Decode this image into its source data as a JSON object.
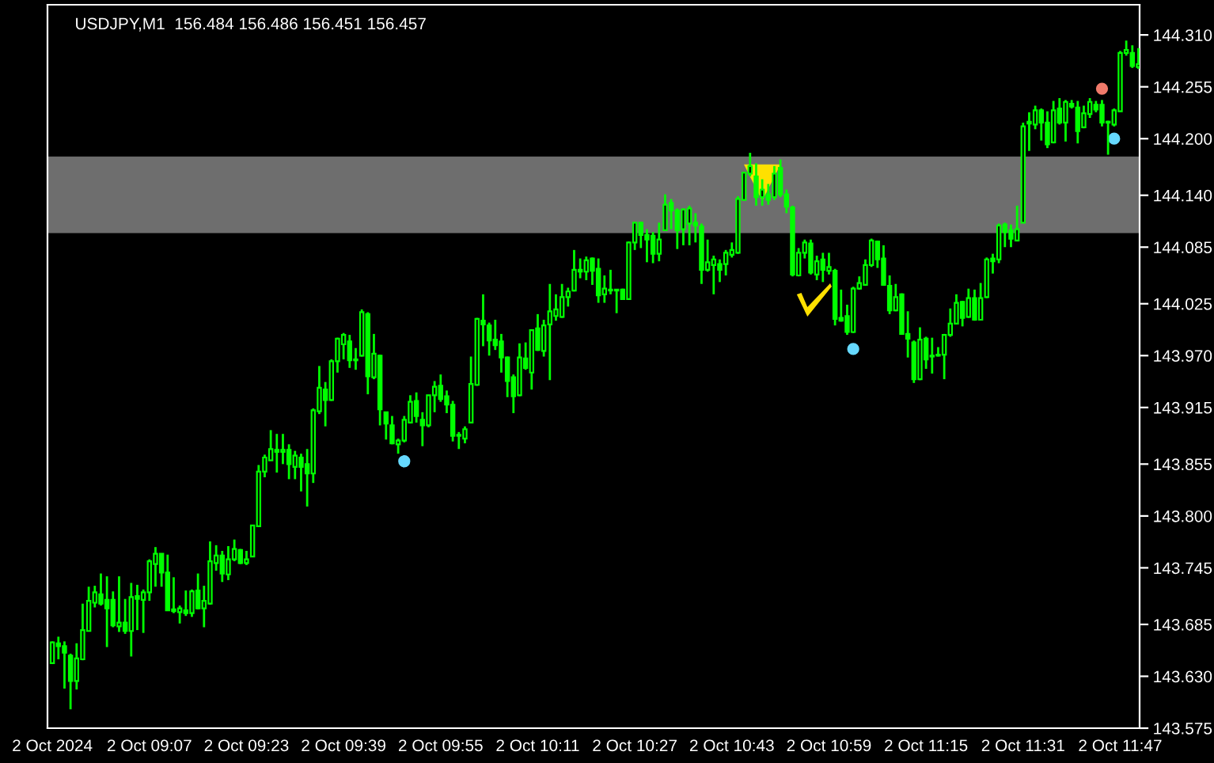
{
  "chart_data": {
    "type": "candlestick",
    "title": "USDJPY,M1  156.484 156.486 156.451 156.457",
    "color": "#00ff00",
    "categories": [
      "2 Oct 2024",
      null,
      null,
      null,
      null,
      null,
      null,
      null,
      null,
      null,
      null,
      null,
      null,
      null,
      null,
      null,
      "2 Oct 09:07",
      null,
      null,
      null,
      null,
      null,
      null,
      null,
      null,
      null,
      null,
      null,
      null,
      null,
      null,
      null,
      "2 Oct 09:23",
      null,
      null,
      null,
      null,
      null,
      null,
      null,
      null,
      null,
      null,
      null,
      null,
      null,
      null,
      null,
      "2 Oct 09:39",
      null,
      null,
      null,
      null,
      null,
      null,
      null,
      null,
      null,
      null,
      null,
      null,
      null,
      null,
      null,
      "2 Oct 09:55",
      null,
      null,
      null,
      null,
      null,
      null,
      null,
      null,
      null,
      null,
      null,
      null,
      null,
      null,
      null,
      "2 Oct 10:11",
      null,
      null,
      null,
      null,
      null,
      null,
      null,
      null,
      null,
      null,
      null,
      null,
      null,
      null,
      null,
      "2 Oct 10:27",
      null,
      null,
      null,
      null,
      null,
      null,
      null,
      null,
      null,
      null,
      null,
      null,
      null,
      null,
      null,
      "2 Oct 10:43",
      null,
      null,
      null,
      null,
      null,
      null,
      null,
      null,
      null,
      null,
      null,
      null,
      null,
      null,
      null,
      "2 Oct 10:59",
      null,
      null,
      null,
      null,
      null,
      null,
      null,
      null,
      null,
      null,
      null,
      null,
      null,
      null,
      null,
      "2 Oct 11:15",
      null,
      null,
      null,
      null,
      null,
      null,
      null,
      null,
      null,
      null,
      null,
      null,
      null,
      null,
      null,
      "2 Oct 11:31",
      null,
      null,
      null,
      null,
      null,
      null,
      null,
      null,
      null,
      null,
      null,
      null,
      null,
      null,
      null,
      "2 Oct 11:47",
      null,
      null,
      null
    ],
    "ohlc": [
      [
        143.644,
        143.667,
        143.643,
        143.666
      ],
      [
        143.665,
        143.672,
        143.648,
        143.662
      ],
      [
        143.662,
        143.667,
        143.617,
        143.655
      ],
      [
        143.652,
        143.654,
        143.595,
        143.625
      ],
      [
        143.625,
        143.665,
        143.616,
        143.649
      ],
      [
        143.648,
        143.707,
        143.647,
        143.679
      ],
      [
        143.678,
        143.725,
        143.678,
        143.71
      ],
      [
        143.708,
        143.726,
        143.703,
        143.719
      ],
      [
        143.717,
        143.739,
        143.705,
        143.707
      ],
      [
        143.711,
        143.736,
        143.661,
        143.702
      ],
      [
        143.711,
        143.72,
        143.682,
        143.684
      ],
      [
        143.683,
        143.736,
        143.677,
        143.687
      ],
      [
        143.687,
        143.712,
        143.675,
        143.678
      ],
      [
        143.678,
        143.729,
        143.651,
        143.714
      ],
      [
        143.715,
        143.727,
        143.679,
        143.712
      ],
      [
        143.711,
        143.722,
        143.676,
        143.719
      ],
      [
        143.719,
        143.754,
        143.71,
        143.752
      ],
      [
        143.749,
        143.767,
        143.725,
        143.76
      ],
      [
        143.76,
        143.76,
        143.725,
        143.74
      ],
      [
        143.74,
        143.759,
        143.7,
        143.7
      ],
      [
        143.701,
        143.735,
        143.697,
        143.699
      ],
      [
        143.698,
        143.705,
        143.686,
        143.702
      ],
      [
        143.7,
        143.721,
        143.694,
        143.697
      ],
      [
        143.697,
        143.722,
        143.693,
        143.72
      ],
      [
        143.721,
        143.739,
        143.701,
        143.702
      ],
      [
        143.702,
        143.726,
        143.682,
        143.71
      ],
      [
        143.707,
        143.773,
        143.706,
        143.752
      ],
      [
        143.75,
        143.769,
        143.742,
        143.758
      ],
      [
        143.758,
        143.763,
        143.73,
        143.739
      ],
      [
        143.738,
        143.768,
        143.732,
        143.754
      ],
      [
        143.754,
        143.775,
        143.752,
        143.765
      ],
      [
        143.764,
        143.765,
        143.749,
        143.75
      ],
      [
        143.75,
        143.763,
        143.748,
        143.754
      ],
      [
        143.757,
        143.79,
        143.757,
        143.79
      ],
      [
        143.789,
        143.854,
        143.789,
        143.847
      ],
      [
        143.847,
        143.865,
        143.841,
        143.862
      ],
      [
        143.859,
        143.891,
        143.859,
        143.871
      ],
      [
        143.87,
        143.887,
        143.846,
        143.868
      ],
      [
        143.868,
        143.887,
        143.855,
        143.87
      ],
      [
        143.87,
        143.876,
        143.839,
        143.855
      ],
      [
        143.852,
        143.869,
        143.839,
        143.864
      ],
      [
        143.862,
        143.866,
        143.826,
        143.852
      ],
      [
        143.855,
        143.871,
        143.81,
        143.845
      ],
      [
        143.845,
        143.914,
        143.835,
        143.912
      ],
      [
        143.911,
        143.959,
        143.908,
        143.936
      ],
      [
        143.934,
        143.942,
        143.895,
        143.923
      ],
      [
        143.923,
        143.966,
        143.922,
        143.964
      ],
      [
        143.964,
        143.989,
        143.952,
        143.988
      ],
      [
        143.982,
        143.994,
        143.966,
        143.992
      ],
      [
        143.985,
        143.992,
        143.957,
        143.965
      ],
      [
        143.965,
        143.978,
        143.955,
        143.966
      ],
      [
        143.97,
        144.019,
        143.969,
        144.016
      ],
      [
        144.014,
        144.016,
        143.929,
        143.948
      ],
      [
        143.947,
        143.993,
        143.945,
        143.972
      ],
      [
        143.97,
        143.971,
        143.896,
        143.913
      ],
      [
        143.91,
        143.91,
        143.881,
        143.898
      ],
      [
        143.896,
        143.906,
        143.876,
        143.877
      ],
      [
        143.876,
        143.882,
        143.866,
        143.88
      ],
      [
        143.88,
        143.906,
        143.878,
        143.902
      ],
      [
        143.899,
        143.928,
        143.898,
        143.921
      ],
      [
        143.922,
        143.931,
        143.899,
        143.906
      ],
      [
        143.902,
        143.91,
        143.874,
        143.896
      ],
      [
        143.896,
        143.928,
        143.894,
        143.928
      ],
      [
        143.928,
        143.943,
        143.91,
        143.937
      ],
      [
        143.938,
        143.95,
        143.921,
        143.924
      ],
      [
        143.927,
        143.933,
        143.909,
        143.918
      ],
      [
        143.918,
        143.922,
        143.879,
        143.885
      ],
      [
        143.885,
        143.889,
        143.871,
        143.886
      ],
      [
        143.882,
        143.895,
        143.877,
        143.892
      ],
      [
        143.899,
        143.969,
        143.899,
        143.94
      ],
      [
        143.939,
        144.01,
        143.938,
        144.009
      ],
      [
        144.007,
        144.035,
        143.98,
        144.003
      ],
      [
        144.002,
        144.005,
        143.97,
        143.986
      ],
      [
        143.987,
        144.008,
        143.976,
        143.981
      ],
      [
        143.985,
        143.993,
        143.952,
        143.968
      ],
      [
        143.968,
        143.969,
        143.926,
        143.943
      ],
      [
        143.947,
        143.95,
        143.909,
        143.927
      ],
      [
        143.928,
        143.983,
        143.927,
        143.968
      ],
      [
        143.967,
        143.984,
        143.955,
        143.957
      ],
      [
        143.952,
        143.998,
        143.934,
        143.997
      ],
      [
        143.999,
        144.014,
        143.975,
        143.976
      ],
      [
        143.975,
        144.008,
        143.969,
        144.002
      ],
      [
        144.003,
        144.046,
        143.944,
        144.017
      ],
      [
        144.012,
        144.035,
        144.007,
        144.019
      ],
      [
        144.011,
        144.046,
        144.01,
        144.032
      ],
      [
        144.032,
        144.042,
        144.022,
        144.038
      ],
      [
        144.039,
        144.082,
        144.038,
        144.061
      ],
      [
        144.061,
        144.073,
        144.052,
        144.059
      ],
      [
        144.059,
        144.075,
        144.05,
        144.071
      ],
      [
        144.073,
        144.074,
        144.045,
        144.06
      ],
      [
        144.062,
        144.073,
        144.026,
        144.034
      ],
      [
        144.035,
        144.055,
        144.026,
        144.041
      ],
      [
        144.04,
        144.061,
        144.035,
        144.039
      ],
      [
        144.039,
        144.04,
        144.015,
        144.04
      ],
      [
        144.04,
        144.041,
        144.029,
        144.03
      ],
      [
        144.03,
        144.091,
        144.029,
        144.09
      ],
      [
        144.09,
        144.112,
        144.082,
        144.111
      ],
      [
        144.111,
        144.112,
        144.084,
        144.098
      ],
      [
        144.098,
        144.104,
        144.069,
        144.093
      ],
      [
        144.097,
        144.101,
        144.068,
        144.078
      ],
      [
        144.078,
        144.111,
        144.07,
        144.093
      ],
      [
        144.103,
        144.141,
        144.102,
        144.13
      ],
      [
        144.132,
        144.136,
        144.104,
        144.124
      ],
      [
        144.124,
        144.126,
        144.083,
        144.103
      ],
      [
        144.104,
        144.126,
        144.087,
        144.125
      ],
      [
        144.11,
        144.129,
        144.087,
        144.126
      ],
      [
        144.111,
        144.121,
        144.09,
        144.108
      ],
      [
        144.107,
        144.11,
        144.046,
        144.061
      ],
      [
        144.061,
        144.093,
        144.059,
        144.069
      ],
      [
        144.066,
        144.076,
        144.035,
        144.072
      ],
      [
        144.067,
        144.072,
        144.048,
        144.061
      ],
      [
        144.067,
        144.082,
        144.055,
        144.079
      ],
      [
        144.077,
        144.09,
        144.074,
        144.082
      ],
      [
        144.079,
        144.139,
        144.078,
        144.136
      ],
      [
        144.135,
        144.165,
        144.135,
        144.164
      ],
      [
        144.163,
        144.185,
        144.16,
        144.171
      ],
      [
        144.16,
        144.174,
        144.129,
        144.138
      ],
      [
        144.138,
        144.157,
        144.129,
        144.146
      ],
      [
        144.141,
        144.152,
        144.13,
        144.135
      ],
      [
        144.138,
        144.171,
        144.135,
        144.163
      ],
      [
        144.169,
        144.178,
        144.138,
        144.141
      ],
      [
        144.141,
        144.146,
        144.121,
        144.128
      ],
      [
        144.127,
        144.129,
        144.054,
        144.056
      ],
      [
        144.055,
        144.084,
        144.054,
        144.079
      ],
      [
        144.079,
        144.093,
        144.073,
        144.09
      ],
      [
        144.089,
        144.093,
        144.056,
        144.058
      ],
      [
        144.056,
        144.076,
        144.05,
        144.07
      ],
      [
        144.072,
        144.079,
        144.048,
        144.061
      ],
      [
        144.06,
        144.079,
        144.056,
        144.064
      ],
      [
        144.06,
        144.062,
        144.002,
        144.009
      ],
      [
        144.01,
        144.04,
        144.006,
        144.007
      ],
      [
        144.012,
        144.024,
        143.992,
        143.995
      ],
      [
        143.995,
        144.043,
        143.994,
        144.041
      ],
      [
        144.041,
        144.054,
        144.04,
        144.047
      ],
      [
        144.045,
        144.072,
        144.044,
        144.066
      ],
      [
        144.066,
        144.094,
        144.064,
        144.092
      ],
      [
        144.091,
        144.092,
        144.063,
        144.072
      ],
      [
        144.073,
        144.087,
        144.044,
        144.045
      ],
      [
        144.044,
        144.055,
        144.014,
        144.018
      ],
      [
        144.018,
        144.046,
        144.017,
        144.032
      ],
      [
        144.035,
        144.036,
        143.992,
        143.993
      ],
      [
        143.993,
        144.017,
        143.968,
        143.988
      ],
      [
        143.984,
        143.986,
        143.941,
        143.945
      ],
      [
        143.945,
        144.0,
        143.944,
        143.987
      ],
      [
        143.988,
        143.99,
        143.956,
        143.966
      ],
      [
        143.969,
        143.989,
        143.951,
        143.97
      ],
      [
        143.97,
        143.979,
        143.969,
        143.971
      ],
      [
        143.971,
        143.993,
        143.945,
        143.992
      ],
      [
        143.992,
        144.02,
        143.99,
        144.004
      ],
      [
        144.004,
        144.035,
        144.003,
        144.026
      ],
      [
        144.027,
        144.028,
        144.001,
        144.01
      ],
      [
        144.011,
        144.041,
        144.01,
        144.031
      ],
      [
        144.031,
        144.04,
        144.007,
        144.008
      ],
      [
        144.008,
        144.047,
        144.008,
        144.031
      ],
      [
        144.032,
        144.074,
        144.031,
        144.072
      ],
      [
        144.073,
        144.078,
        144.057,
        144.07
      ],
      [
        144.072,
        144.11,
        144.068,
        144.108
      ],
      [
        144.109,
        144.111,
        144.085,
        144.101
      ],
      [
        144.103,
        144.109,
        144.085,
        144.094
      ],
      [
        144.092,
        144.129,
        144.091,
        144.104
      ],
      [
        144.111,
        144.217,
        144.111,
        144.213
      ],
      [
        144.216,
        144.228,
        144.187,
        144.218
      ],
      [
        144.215,
        144.235,
        144.21,
        144.23
      ],
      [
        144.23,
        144.232,
        144.198,
        144.217
      ],
      [
        144.217,
        144.229,
        144.19,
        144.194
      ],
      [
        144.196,
        144.24,
        144.195,
        144.23
      ],
      [
        144.232,
        144.243,
        144.215,
        144.217
      ],
      [
        144.217,
        144.241,
        144.197,
        144.239
      ],
      [
        144.237,
        144.241,
        144.232,
        144.234
      ],
      [
        144.233,
        144.24,
        144.195,
        144.208
      ],
      [
        144.212,
        144.235,
        144.211,
        144.227
      ],
      [
        144.226,
        144.243,
        144.222,
        144.239
      ],
      [
        144.236,
        144.24,
        144.228,
        144.231
      ],
      [
        144.236,
        144.241,
        144.213,
        144.217
      ],
      [
        144.217,
        144.219,
        144.183,
        144.218
      ],
      [
        144.215,
        144.232,
        144.213,
        144.23
      ],
      [
        144.229,
        144.293,
        144.229,
        144.291
      ],
      [
        144.291,
        144.304,
        144.288,
        144.294
      ],
      [
        144.291,
        144.299,
        144.275,
        144.277
      ],
      [
        144.276,
        144.296,
        144.274,
        144.279
      ]
    ],
    "series": [
      {
        "type": "scatter",
        "marker": "triangle",
        "color": "#ffe000",
        "values": [
          null,
          null,
          null,
          null,
          null,
          null,
          null,
          null,
          null,
          null,
          null,
          null,
          null,
          null,
          null,
          null,
          null,
          null,
          null,
          null,
          null,
          null,
          null,
          null,
          null,
          null,
          null,
          null,
          null,
          null,
          null,
          null,
          null,
          null,
          null,
          null,
          null,
          null,
          null,
          null,
          null,
          null,
          null,
          null,
          null,
          null,
          null,
          null,
          null,
          null,
          null,
          null,
          null,
          null,
          null,
          null,
          null,
          null,
          null,
          null,
          null,
          null,
          null,
          null,
          null,
          null,
          null,
          null,
          null,
          null,
          null,
          null,
          null,
          null,
          null,
          null,
          null,
          null,
          null,
          null,
          null,
          null,
          null,
          null,
          null,
          null,
          null,
          null,
          null,
          null,
          null,
          null,
          null,
          null,
          null,
          null,
          null,
          null,
          null,
          null,
          null,
          null,
          null,
          null,
          null,
          null,
          null,
          null,
          null,
          null,
          null,
          null,
          null,
          null,
          null,
          null,
          null,
          144.154,
          null,
          null,
          null,
          null,
          null,
          null,
          null,
          null,
          null,
          null,
          null,
          null,
          null,
          null,
          null,
          null,
          null,
          null,
          null,
          null,
          null,
          null,
          null,
          null,
          null,
          null,
          null,
          null,
          null,
          null,
          null,
          null,
          null,
          null,
          null,
          null,
          null,
          null,
          null,
          null,
          null,
          null,
          null,
          null,
          null,
          null,
          null,
          null,
          null,
          null,
          null,
          null,
          null,
          null,
          null,
          null,
          null,
          null,
          null,
          null,
          null,
          null
        ]
      },
      {
        "type": "scatter",
        "marker": "circle",
        "color": "#66d9ff",
        "values": [
          null,
          null,
          null,
          null,
          null,
          null,
          null,
          null,
          null,
          null,
          null,
          null,
          null,
          null,
          null,
          null,
          null,
          null,
          null,
          null,
          null,
          null,
          null,
          null,
          null,
          null,
          null,
          null,
          null,
          null,
          null,
          null,
          null,
          null,
          null,
          null,
          null,
          null,
          null,
          null,
          null,
          null,
          null,
          null,
          null,
          null,
          null,
          null,
          null,
          null,
          null,
          null,
          null,
          null,
          null,
          null,
          null,
          null,
          143.858,
          null,
          null,
          null,
          null,
          null,
          null,
          null,
          null,
          null,
          null,
          null,
          null,
          null,
          null,
          null,
          null,
          null,
          null,
          null,
          null,
          null,
          null,
          null,
          null,
          null,
          null,
          null,
          null,
          null,
          null,
          null,
          null,
          null,
          null,
          null,
          null,
          null,
          null,
          null,
          null,
          null,
          null,
          null,
          null,
          null,
          null,
          null,
          null,
          null,
          null,
          null,
          null,
          null,
          null,
          null,
          null,
          null,
          null,
          null,
          null,
          null,
          null,
          null,
          null,
          null,
          null,
          null,
          null,
          null,
          null,
          null,
          null,
          null,
          143.977,
          null,
          null,
          null,
          null,
          null,
          null,
          null,
          null,
          null,
          null,
          null,
          null,
          null,
          null,
          null,
          null,
          null,
          null,
          null,
          null,
          null,
          null,
          null,
          null,
          null,
          null,
          null,
          null,
          null,
          null,
          null,
          null,
          null,
          null,
          null,
          null,
          null,
          null,
          null,
          null,
          null,
          null,
          144.2,
          null,
          null,
          null,
          null
        ]
      },
      {
        "type": "scatter",
        "marker": "circle",
        "color": "#f07a6a",
        "values": [
          null,
          null,
          null,
          null,
          null,
          null,
          null,
          null,
          null,
          null,
          null,
          null,
          null,
          null,
          null,
          null,
          null,
          null,
          null,
          null,
          null,
          null,
          null,
          null,
          null,
          null,
          null,
          null,
          null,
          null,
          null,
          null,
          null,
          null,
          null,
          null,
          null,
          null,
          null,
          null,
          null,
          null,
          null,
          null,
          null,
          null,
          null,
          null,
          null,
          null,
          null,
          null,
          null,
          null,
          null,
          null,
          null,
          null,
          null,
          null,
          null,
          null,
          null,
          null,
          null,
          null,
          null,
          null,
          null,
          null,
          null,
          null,
          null,
          null,
          null,
          null,
          null,
          null,
          null,
          null,
          null,
          null,
          null,
          null,
          null,
          null,
          null,
          null,
          null,
          null,
          null,
          null,
          null,
          null,
          null,
          null,
          null,
          null,
          null,
          null,
          null,
          null,
          null,
          null,
          null,
          null,
          null,
          null,
          null,
          null,
          null,
          null,
          null,
          null,
          null,
          null,
          null,
          null,
          null,
          null,
          null,
          null,
          null,
          null,
          null,
          null,
          null,
          null,
          null,
          null,
          null,
          null,
          null,
          null,
          null,
          null,
          null,
          null,
          null,
          null,
          null,
          null,
          null,
          null,
          null,
          null,
          null,
          null,
          null,
          null,
          null,
          null,
          null,
          null,
          null,
          null,
          null,
          null,
          null,
          null,
          null,
          null,
          null,
          null,
          null,
          null,
          null,
          null,
          null,
          null,
          null,
          null,
          null,
          144.253,
          null,
          null,
          null,
          null,
          null,
          null
        ]
      }
    ],
    "bands": [
      {
        "axis": "y",
        "from": 144.1,
        "to": 144.181,
        "color": "#6e6e6e"
      }
    ],
    "ylim": [
      143.575,
      144.342
    ],
    "yticks": [
      {
        "value": 143.575,
        "label": "143.575"
      },
      {
        "value": 143.63,
        "label": "143.630"
      },
      143.685,
      143.745,
      {
        "value": 143.8,
        "label": "143.800"
      },
      143.855,
      143.915,
      {
        "value": 143.97,
        "label": "143.970"
      },
      144.025,
      144.085,
      {
        "value": 144.14,
        "label": "144.140"
      },
      {
        "value": 144.2,
        "label": "144.200"
      },
      144.255,
      {
        "value": 144.31,
        "label": "144.310"
      }
    ],
    "grid": false,
    "legend": false
  }
}
